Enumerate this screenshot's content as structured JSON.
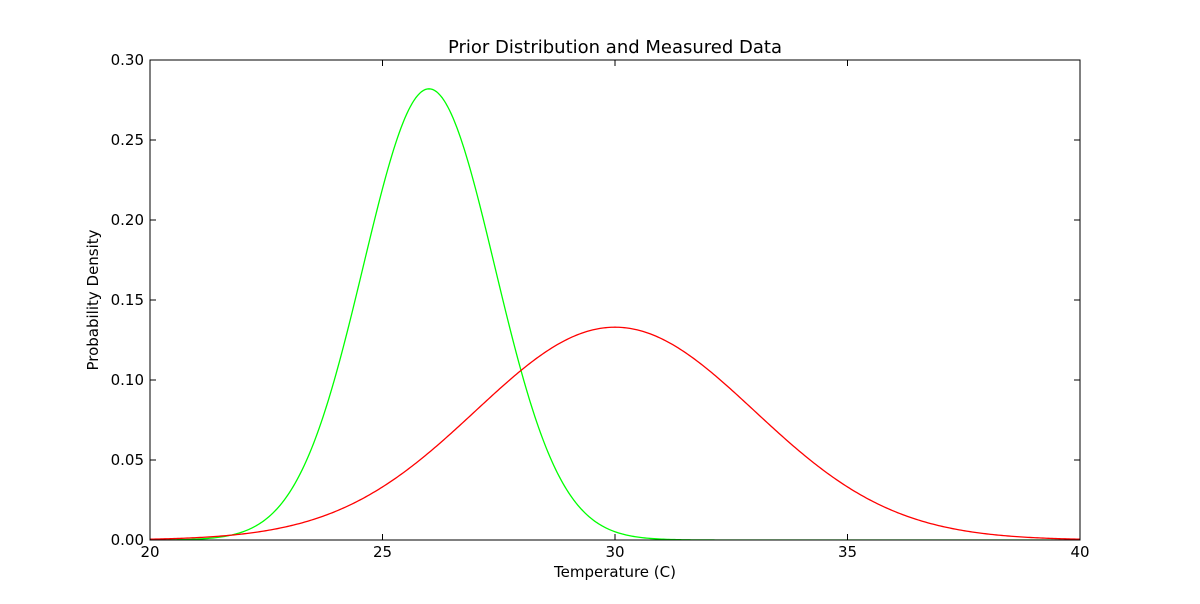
{
  "chart_data": {
    "type": "line",
    "title": "Prior Distribution and Measured Data",
    "xlabel": "Temperature (C)",
    "ylabel": "Probability Density",
    "xlim": [
      20,
      40
    ],
    "ylim": [
      0.0,
      0.3
    ],
    "xticks": [
      20,
      25,
      30,
      35,
      40
    ],
    "xtick_labels": [
      "20",
      "25",
      "30",
      "35",
      "40"
    ],
    "yticks": [
      0.0,
      0.05,
      0.1,
      0.15,
      0.2,
      0.25,
      0.3
    ],
    "ytick_labels": [
      "0.00",
      "0.05",
      "0.10",
      "0.15",
      "0.20",
      "0.25",
      "0.30"
    ],
    "grid": false,
    "legend": "none",
    "series": [
      {
        "color": "#00ff00",
        "distribution": "normal",
        "mean": 26.0,
        "std": 1.414,
        "peak": 0.282
      },
      {
        "color": "#ff0000",
        "distribution": "normal",
        "mean": 30.0,
        "std": 3.0,
        "peak": 0.133
      }
    ]
  }
}
